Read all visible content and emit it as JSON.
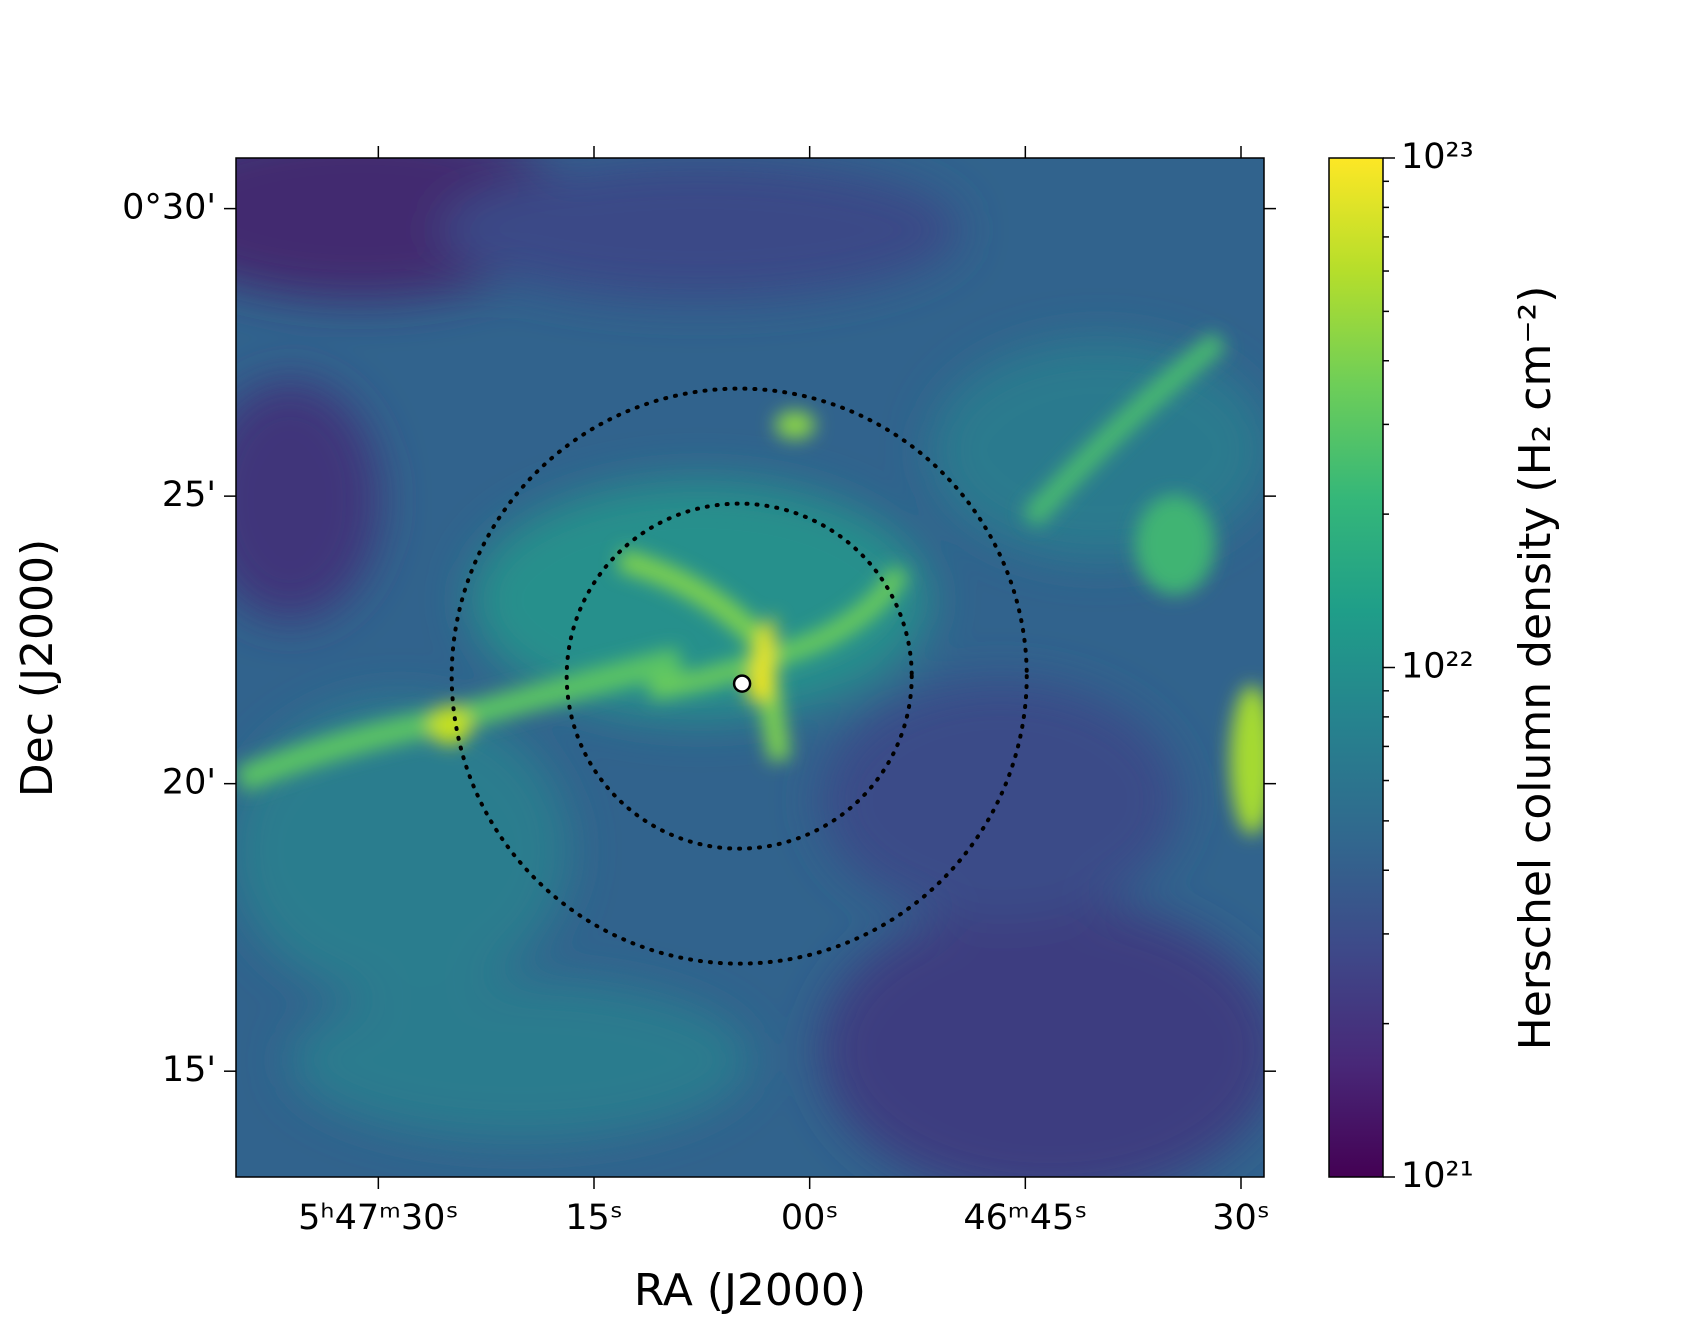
{
  "chart_data": {
    "type": "image",
    "xlabel": "RA (J2000)",
    "ylabel": "Dec (J2000)",
    "xlim": [
      20859.9,
      20788.4
    ],
    "xticks": [
      {
        "value": 20850,
        "label": "5ʰ47ᵐ30ˢ"
      },
      {
        "value": 20835,
        "label": "15ˢ"
      },
      {
        "value": 20820,
        "label": "00ˢ"
      },
      {
        "value": 20805,
        "label": "46ᵐ45ˢ"
      },
      {
        "value": 20790,
        "label": "30ˢ"
      }
    ],
    "ylim": [
      13.16,
      30.88
    ],
    "yticks": [
      {
        "value": 30,
        "label": "0°30'"
      },
      {
        "value": 25,
        "label": "25'"
      },
      {
        "value": 20,
        "label": "20'"
      },
      {
        "value": 15,
        "label": "15'"
      }
    ],
    "regions": [
      {
        "ra": 20824.9,
        "dec": 21.87,
        "radius": 5.0
      },
      {
        "ra": 20824.9,
        "dec": 21.87,
        "radius": 3.0
      }
    ],
    "source": {
      "ra": 20824.7,
      "dec": 21.74
    },
    "colorbar": {
      "label": "Herschel column density (H₂ cm⁻²)",
      "log": true,
      "lim": [
        1e+21,
        1e+23
      ],
      "ticks": [
        {
          "value": 1e+21,
          "label": "10²¹"
        },
        {
          "value": 1e+22,
          "label": "10²²"
        },
        {
          "value": 1e+23,
          "label": "10²³"
        }
      ],
      "minor_ticks": [
        2e+21,
        3e+21,
        4e+21,
        5e+21,
        6e+21,
        7e+21,
        8e+21,
        9e+21,
        2e+22,
        3e+22,
        4e+22,
        5e+22,
        6e+22,
        7e+22,
        8e+22,
        9e+22
      ],
      "colormap": [
        "#440154",
        "#482878",
        "#3e4989",
        "#31688e",
        "#26828e",
        "#1f9e89",
        "#35b779",
        "#6ece58",
        "#b5de2b",
        "#fde725"
      ]
    }
  }
}
